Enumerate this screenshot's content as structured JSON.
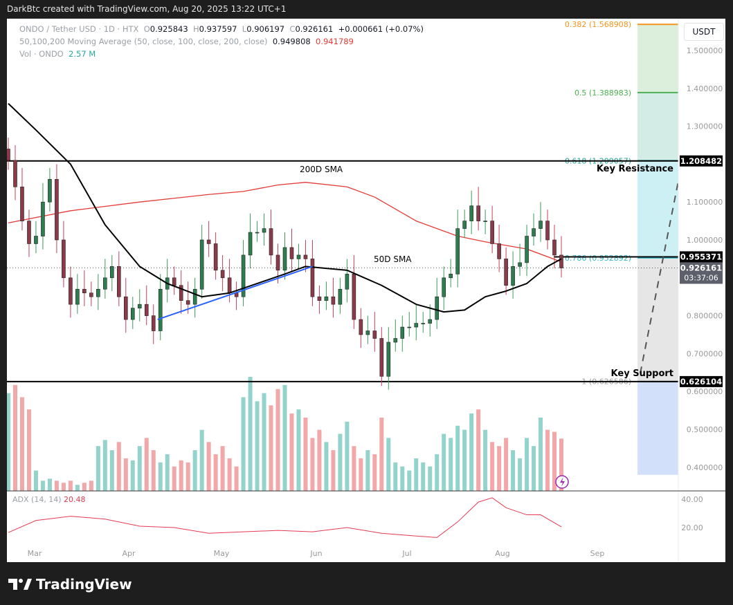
{
  "header": {
    "credit": "DarkBtc created with TradingView.com, Aug 20, 2025 13:22 UTC+1"
  },
  "legend": {
    "symbol": "ONDO / Tether USD · 1D · HTX",
    "o_label": "O",
    "o": "0.925843",
    "h_label": "H",
    "h": "0.937597",
    "l_label": "L",
    "l": "0.906197",
    "c_label": "C",
    "c": "0.926161",
    "change": "+0.000661 (+0.07%)",
    "ma_label": "50,100,200 Moving Average (50, close, 100, close, 200, close)",
    "ma50": "0.949808",
    "ma200": "0.941789",
    "vol_label": "Vol · ONDO",
    "vol": "2.57 M"
  },
  "currency_button": "USDT",
  "footer": {
    "brand": "TradingView"
  },
  "chart_data": {
    "type": "candlestick",
    "x_range": [
      "2025-02-21",
      "2025-08-20"
    ],
    "ylim": [
      0.38,
      1.58
    ],
    "grid": false,
    "x_ticks": [
      "Mar",
      "Apr",
      "May",
      "Jun",
      "Jul",
      "Aug",
      "Sep"
    ],
    "y_ticks": [
      "1.500000",
      "1.400000",
      "1.300000",
      "1.100000",
      "1.000000",
      "0.800000",
      "0.700000",
      "0.600000",
      "0.500000",
      "0.400000"
    ],
    "closes": [
      1.21,
      1.14,
      1.05,
      0.99,
      1.01,
      1.1,
      1.16,
      1.0,
      0.9,
      0.83,
      0.87,
      0.86,
      0.85,
      0.87,
      0.9,
      0.93,
      0.85,
      0.79,
      0.82,
      0.83,
      0.8,
      0.76,
      0.87,
      0.9,
      0.88,
      0.84,
      0.83,
      0.87,
      1.0,
      0.99,
      0.92,
      0.9,
      0.86,
      0.85,
      0.96,
      1.02,
      1.02,
      1.03,
      0.96,
      0.92,
      0.98,
      0.95,
      0.96,
      0.95,
      0.85,
      0.84,
      0.85,
      0.83,
      0.87,
      0.91,
      0.79,
      0.75,
      0.76,
      0.74,
      0.64,
      0.73,
      0.74,
      0.77,
      0.77,
      0.78,
      0.78,
      0.79,
      0.85,
      0.9,
      0.91,
      1.03,
      1.05,
      1.09,
      1.05,
      1.05,
      0.99,
      0.95,
      0.88,
      0.93,
      0.94,
      1.01,
      1.03,
      1.05,
      1.0,
      0.96,
      0.926
    ],
    "volume_millions": [
      4.8,
      5.2,
      4.6,
      4.0,
      1.0,
      0.5,
      0.6,
      0.5,
      0.4,
      0.5,
      0.3,
      0.4,
      0.5,
      2.2,
      2.5,
      2.0,
      2.4,
      1.6,
      1.5,
      2.2,
      2.6,
      2.0,
      1.4,
      1.8,
      1.2,
      1.5,
      1.4,
      2.0,
      3.0,
      2.4,
      1.8,
      2.2,
      1.6,
      1.2,
      4.6,
      5.6,
      4.4,
      4.8,
      4.2,
      5.0,
      5.2,
      3.8,
      4.0,
      3.6,
      2.6,
      3.0,
      2.4,
      2.0,
      2.8,
      3.4,
      2.2,
      1.6,
      2.0,
      1.8,
      3.6,
      2.6,
      1.4,
      1.2,
      1.0,
      1.6,
      1.4,
      1.2,
      1.8,
      2.8,
      2.6,
      3.2,
      3.0,
      3.8,
      4.0,
      3.0,
      2.4,
      2.2,
      2.6,
      2.0,
      1.6,
      2.6,
      2.2,
      3.6,
      3.0,
      2.9,
      2.57
    ],
    "sma50": {
      "label": "50D SMA",
      "values": [
        [
          0,
          1.36
        ],
        [
          4,
          1.29
        ],
        [
          9,
          1.2
        ],
        [
          14,
          1.04
        ],
        [
          19,
          0.93
        ],
        [
          23,
          0.885
        ],
        [
          28,
          0.85
        ],
        [
          32,
          0.86
        ],
        [
          36,
          0.885
        ],
        [
          40,
          0.91
        ],
        [
          43,
          0.93
        ],
        [
          49,
          0.92
        ],
        [
          54,
          0.88
        ],
        [
          59,
          0.83
        ],
        [
          63,
          0.81
        ],
        [
          66,
          0.815
        ],
        [
          69,
          0.85
        ],
        [
          72,
          0.865
        ],
        [
          75,
          0.885
        ],
        [
          78,
          0.93
        ],
        [
          80,
          0.95
        ]
      ]
    },
    "sma200": {
      "label": "200D SMA",
      "values": [
        [
          0,
          1.045
        ],
        [
          9,
          1.077
        ],
        [
          19,
          1.1
        ],
        [
          29,
          1.12
        ],
        [
          34,
          1.128
        ],
        [
          39,
          1.145
        ],
        [
          43,
          1.152
        ],
        [
          49,
          1.14
        ],
        [
          53,
          1.113
        ],
        [
          59,
          1.05
        ],
        [
          65,
          1.01
        ],
        [
          69,
          0.995
        ],
        [
          75,
          0.976
        ],
        [
          80,
          0.942
        ]
      ]
    },
    "trendline": [
      [
        21.6,
        0.79
      ],
      [
        44,
        0.93
      ]
    ],
    "fib_levels": [
      {
        "label": "0.382 (1.568908)",
        "value": 1.568908,
        "color": "#f7941d"
      },
      {
        "label": "0.5 (1.388983)",
        "value": 1.388983,
        "color": "#4caf50"
      },
      {
        "label": "0.618 (1.209057)",
        "value": 1.209057,
        "color": "#26a69a"
      },
      {
        "label": "0.786 (0.952892)",
        "value": 0.952892,
        "color": "#33b5c9"
      },
      {
        "label": "1 (0.626586)",
        "value": 0.626586,
        "color": "#9e9e9e"
      }
    ],
    "horizontal_lines": [
      {
        "label": "Key Resistance",
        "value": 1.208482,
        "tag": "1.208482"
      },
      {
        "label": "Key Support",
        "value": 0.626104,
        "tag": "0.626104"
      },
      {
        "label": "",
        "value": 0.955371,
        "tag": "0.955371"
      }
    ],
    "last_price": {
      "value": "0.926161",
      "countdown": "03:37:06"
    },
    "adx": {
      "label": "ADX (14, 14)",
      "current": "20.48",
      "ticks": [
        "40.00",
        "20.00"
      ],
      "values": [
        [
          0,
          16.5
        ],
        [
          4,
          25
        ],
        [
          9,
          28
        ],
        [
          14,
          26
        ],
        [
          19,
          21
        ],
        [
          24,
          20
        ],
        [
          29,
          16
        ],
        [
          34,
          17
        ],
        [
          39,
          18
        ],
        [
          44,
          17
        ],
        [
          49,
          20
        ],
        [
          54,
          16
        ],
        [
          59,
          14
        ],
        [
          62,
          13
        ],
        [
          65,
          24
        ],
        [
          68,
          38
        ],
        [
          70,
          41
        ],
        [
          72,
          34
        ],
        [
          75,
          29
        ],
        [
          77,
          29
        ],
        [
          80,
          20.5
        ]
      ]
    },
    "colors": {
      "up": "#2e7d4f",
      "down": "#8b3a4a",
      "vol_up": "#94d3cb",
      "vol_down": "#f2a8a8",
      "sma50": "#000000",
      "sma200": "#e53935",
      "trend": "#2962ff",
      "adx": "#e53950"
    }
  }
}
